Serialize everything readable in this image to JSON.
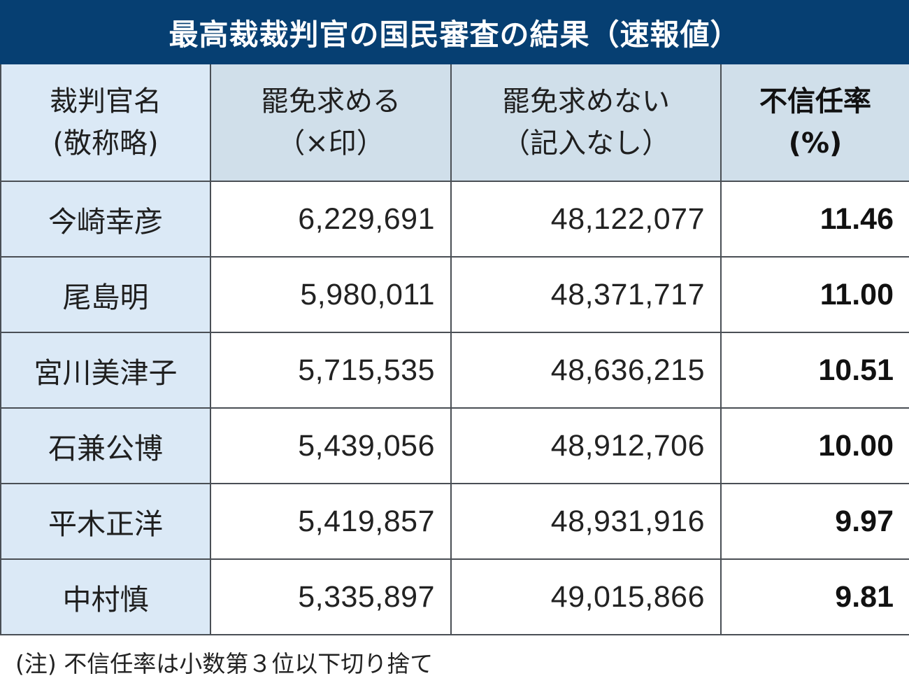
{
  "title": "最高裁裁判官の国民審査の結果（速報値）",
  "table": {
    "headers": [
      {
        "line1": "裁判官名",
        "line2": "(敬称略)"
      },
      {
        "line1": "罷免求める",
        "line2": "（×印）"
      },
      {
        "line1": "罷免求めない",
        "line2": "（記入なし）"
      },
      {
        "line1": "不信任率",
        "line2": "(%)"
      }
    ],
    "rows": [
      {
        "name": "今崎幸彦",
        "dismiss": "6,229,691",
        "retain": "48,122,077",
        "rate": "11.46"
      },
      {
        "name": "尾島明",
        "dismiss": "5,980,011",
        "retain": "48,371,717",
        "rate": "11.00"
      },
      {
        "name": "宮川美津子",
        "dismiss": "5,715,535",
        "retain": "48,636,215",
        "rate": "10.51"
      },
      {
        "name": "石兼公博",
        "dismiss": "5,439,056",
        "retain": "48,912,706",
        "rate": "10.00"
      },
      {
        "name": "平木正洋",
        "dismiss": "5,419,857",
        "retain": "48,931,916",
        "rate": "9.97"
      },
      {
        "name": "中村慎",
        "dismiss": "5,335,897",
        "retain": "49,015,866",
        "rate": "9.81"
      }
    ]
  },
  "footnote": "(注) 不信任率は小数第３位以下切り捨て",
  "colors": {
    "title_bg": "#063f72",
    "header_bg": "#d0dfea",
    "name_col_bg": "#dbe9f6",
    "border": "#4a4f55"
  }
}
